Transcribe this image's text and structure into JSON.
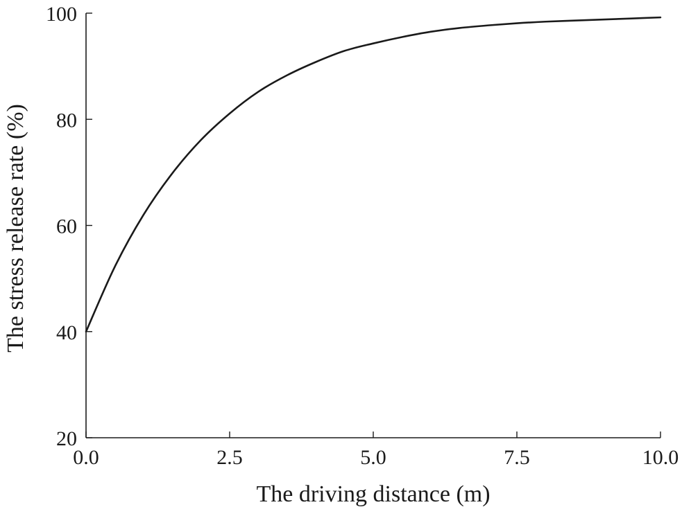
{
  "chart_data": {
    "type": "line",
    "title": "",
    "xlabel": "The driving distance (m)",
    "ylabel": "The stress release rate (%)",
    "xlim": [
      0,
      10
    ],
    "ylim": [
      20,
      100
    ],
    "x_ticks": [
      0,
      2.5,
      5,
      7.5,
      10
    ],
    "x_tick_labels": [
      "0.0",
      "2.5",
      "5.0",
      "7.5",
      "10.0"
    ],
    "y_ticks": [
      20,
      40,
      60,
      80,
      100
    ],
    "y_tick_labels": [
      "20",
      "40",
      "60",
      "80",
      "100"
    ],
    "grid": false,
    "line_color": "#1a1a1a",
    "series": [
      {
        "x": [
          0,
          0.5,
          1,
          1.5,
          2,
          2.5,
          3,
          3.5,
          4,
          4.5,
          5,
          5.5,
          6,
          6.5,
          7,
          7.5,
          8,
          8.5,
          9,
          9.5,
          10
        ],
        "y": [
          40,
          52.2,
          62.0,
          69.8,
          76.1,
          81.1,
          85.2,
          88.3,
          90.8,
          92.9,
          94.3,
          95.5,
          96.5,
          97.2,
          97.7,
          98.1,
          98.4,
          98.6,
          98.8,
          99.0,
          99.2
        ]
      }
    ]
  }
}
